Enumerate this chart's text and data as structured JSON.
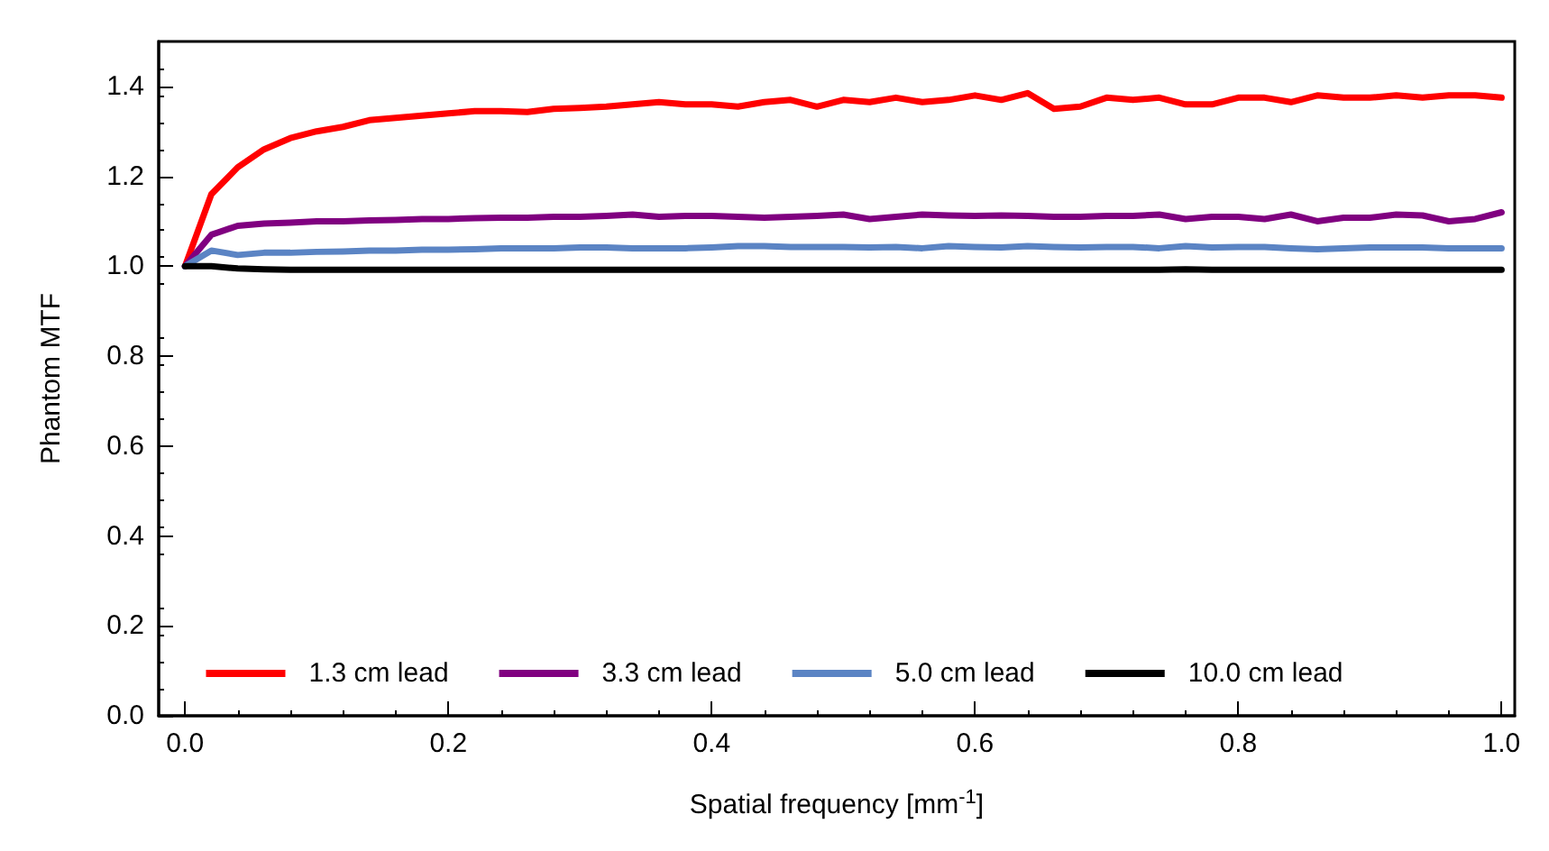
{
  "chart_data": {
    "type": "line",
    "xlabel": "Spatial frequency [mm$^{-1}$]",
    "ylabel": "Phantom MTF",
    "x": [
      0,
      0.02,
      0.04,
      0.06,
      0.08,
      0.1,
      0.12,
      0.14,
      0.16,
      0.18,
      0.2,
      0.22,
      0.24,
      0.26,
      0.28,
      0.3,
      0.32,
      0.34,
      0.36,
      0.38,
      0.4,
      0.42,
      0.44,
      0.46,
      0.48,
      0.5,
      0.52,
      0.54,
      0.56,
      0.58,
      0.6,
      0.62,
      0.64,
      0.66,
      0.68,
      0.7,
      0.72,
      0.74,
      0.76,
      0.78,
      0.8,
      0.82,
      0.84,
      0.86,
      0.88,
      0.9,
      0.92,
      0.94,
      0.96,
      0.98,
      1.0
    ],
    "series": [
      {
        "name": "1.3 cm lead",
        "color": "#ff0000",
        "values": [
          1.0,
          1.16,
          1.22,
          1.26,
          1.285,
          1.3,
          1.31,
          1.325,
          1.33,
          1.335,
          1.34,
          1.345,
          1.345,
          1.343,
          1.35,
          1.352,
          1.355,
          1.36,
          1.365,
          1.36,
          1.36,
          1.355,
          1.365,
          1.37,
          1.355,
          1.37,
          1.365,
          1.375,
          1.365,
          1.37,
          1.38,
          1.37,
          1.385,
          1.35,
          1.355,
          1.375,
          1.37,
          1.375,
          1.36,
          1.36,
          1.375,
          1.375,
          1.365,
          1.38,
          1.375,
          1.375,
          1.38,
          1.375,
          1.38,
          1.38,
          1.375
        ]
      },
      {
        "name": "3.3 cm lead",
        "color": "#800080",
        "values": [
          1.0,
          1.07,
          1.09,
          1.095,
          1.097,
          1.1,
          1.1,
          1.102,
          1.103,
          1.105,
          1.105,
          1.107,
          1.108,
          1.108,
          1.11,
          1.11,
          1.112,
          1.115,
          1.11,
          1.112,
          1.112,
          1.11,
          1.108,
          1.11,
          1.112,
          1.115,
          1.105,
          1.11,
          1.115,
          1.113,
          1.112,
          1.113,
          1.112,
          1.11,
          1.11,
          1.112,
          1.112,
          1.115,
          1.105,
          1.11,
          1.11,
          1.105,
          1.115,
          1.1,
          1.108,
          1.108,
          1.115,
          1.113,
          1.1,
          1.105,
          1.12
        ]
      },
      {
        "name": "5.0 cm lead",
        "color": "#5b84c4",
        "values": [
          1.0,
          1.035,
          1.025,
          1.03,
          1.03,
          1.032,
          1.033,
          1.035,
          1.035,
          1.037,
          1.037,
          1.038,
          1.04,
          1.04,
          1.04,
          1.042,
          1.042,
          1.04,
          1.04,
          1.04,
          1.042,
          1.045,
          1.045,
          1.043,
          1.043,
          1.043,
          1.042,
          1.043,
          1.04,
          1.045,
          1.043,
          1.042,
          1.045,
          1.043,
          1.042,
          1.043,
          1.043,
          1.04,
          1.045,
          1.042,
          1.043,
          1.043,
          1.04,
          1.038,
          1.04,
          1.042,
          1.042,
          1.042,
          1.04,
          1.04,
          1.04
        ]
      },
      {
        "name": "10.0 cm lead",
        "color": "#000000",
        "values": [
          1.0,
          1.0,
          0.995,
          0.993,
          0.992,
          0.992,
          0.992,
          0.992,
          0.992,
          0.992,
          0.992,
          0.992,
          0.992,
          0.992,
          0.992,
          0.992,
          0.992,
          0.992,
          0.992,
          0.992,
          0.992,
          0.992,
          0.992,
          0.992,
          0.992,
          0.992,
          0.992,
          0.992,
          0.992,
          0.992,
          0.992,
          0.992,
          0.992,
          0.992,
          0.992,
          0.992,
          0.992,
          0.992,
          0.993,
          0.992,
          0.992,
          0.992,
          0.992,
          0.992,
          0.992,
          0.992,
          0.992,
          0.992,
          0.992,
          0.992,
          0.992
        ]
      }
    ],
    "xlim": [
      -0.02,
      1.01
    ],
    "xticks": [
      {
        "value": 0,
        "label": "0.0"
      },
      {
        "value": 0.2,
        "label": "0.2"
      },
      {
        "value": 0.4,
        "label": "0.4"
      },
      {
        "value": 0.6,
        "label": "0.6"
      },
      {
        "value": 0.8,
        "label": "0.8"
      },
      {
        "value": 1,
        "label": "1.0"
      }
    ],
    "ylim": [
      0,
      1.5
    ],
    "yticks": [
      {
        "value": 0,
        "label": "0.0"
      },
      {
        "value": 0.2,
        "label": "0.2"
      },
      {
        "value": 0.4,
        "label": "0.4"
      },
      {
        "value": 0.6,
        "label": "0.6"
      },
      {
        "value": 0.8,
        "label": "0.8"
      },
      {
        "value": 1,
        "label": "1.0"
      },
      {
        "value": 1.2,
        "label": "1.2"
      },
      {
        "value": 1.4,
        "label": "1.4"
      }
    ],
    "legend": "bottom",
    "grid": false,
    "marker": "none",
    "line_style": "solid"
  }
}
